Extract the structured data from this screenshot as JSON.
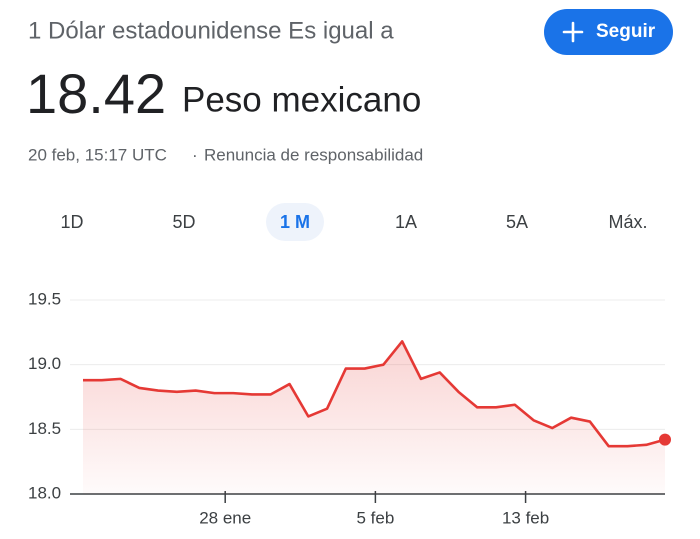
{
  "header": {
    "title": "1 Dólar estadounidense Es igual a",
    "follow_button": "Seguir",
    "rate": "18.42",
    "currency": "Peso mexicano",
    "timestamp": "20 feb, 15:17 UTC",
    "separator": "·",
    "disclaimer": "Renuncia de responsabilidad"
  },
  "tabs": {
    "items": [
      "1D",
      "5D",
      "1 M",
      "1A",
      "5A",
      "Máx."
    ],
    "selected": 2
  },
  "chart_data": {
    "type": "line",
    "color": "#e53935",
    "categories": [
      null,
      null,
      null,
      null,
      null,
      null,
      null,
      null,
      "28 ene",
      null,
      null,
      null,
      null,
      null,
      null,
      null,
      "5 feb",
      null,
      null,
      null,
      null,
      null,
      null,
      null,
      "13 feb",
      null,
      null,
      null,
      null,
      null,
      null,
      null
    ],
    "values": [
      18.88,
      18.88,
      18.89,
      18.82,
      18.8,
      18.79,
      18.8,
      18.78,
      18.78,
      18.77,
      18.77,
      18.85,
      18.6,
      18.66,
      18.97,
      18.97,
      19.0,
      19.18,
      18.89,
      18.94,
      18.79,
      18.67,
      18.67,
      18.69,
      18.57,
      18.51,
      18.59,
      18.56,
      18.37,
      18.37,
      18.38,
      18.42
    ],
    "ylim": [
      18,
      19.5
    ],
    "yticks": [
      {
        "value": 18,
        "label": "18.0"
      },
      18.5,
      {
        "value": 19,
        "label": "19.0"
      },
      19.5
    ],
    "grid": true
  }
}
